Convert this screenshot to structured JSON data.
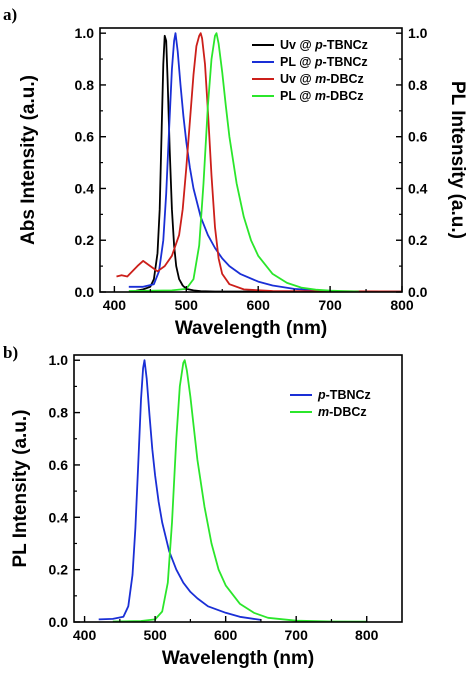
{
  "chart_data": [
    {
      "panel": "a)",
      "type": "line",
      "xlabel": "Wavelength (nm)",
      "ylabel": "Abs Intensity (a.u.)",
      "y2label": "PL Intensity (a.u.)",
      "xlim": [
        380,
        800
      ],
      "ylim": [
        0,
        1.02
      ],
      "xticks": [
        400,
        500,
        600,
        700,
        800
      ],
      "yticks": [
        0.0,
        0.2,
        0.4,
        0.6,
        0.8,
        1.0
      ],
      "ytick_labels": [
        "0.0",
        "0.2",
        "0.4",
        "0.6",
        "0.8",
        "1.0"
      ],
      "legend_position": "top-right",
      "series": [
        {
          "name_parts": [
            "Uv @ ",
            "p",
            "-TBNCz"
          ],
          "color": "#000000",
          "x": [
            430,
            440,
            450,
            455,
            460,
            463,
            466,
            468,
            470,
            472,
            474,
            477,
            480,
            483,
            486,
            490,
            495,
            500,
            510,
            520,
            540,
            580,
            650,
            800
          ],
          "y": [
            0.005,
            0.01,
            0.02,
            0.05,
            0.15,
            0.32,
            0.65,
            0.88,
            0.99,
            0.97,
            0.82,
            0.55,
            0.32,
            0.18,
            0.1,
            0.05,
            0.025,
            0.012,
            0.006,
            0.003,
            0.002,
            0.002,
            0.002,
            0.002
          ]
        },
        {
          "name_parts": [
            "PL @ ",
            "p",
            "-TBNCz"
          ],
          "color": "#1a2fd6",
          "x": [
            420,
            440,
            455,
            462,
            468,
            472,
            476,
            480,
            483,
            485,
            488,
            492,
            496,
            500,
            505,
            510,
            520,
            530,
            540,
            550,
            560,
            575,
            600,
            620,
            650,
            680,
            700
          ],
          "y": [
            0.02,
            0.02,
            0.03,
            0.08,
            0.2,
            0.38,
            0.62,
            0.86,
            0.97,
            1.0,
            0.93,
            0.8,
            0.68,
            0.58,
            0.48,
            0.4,
            0.29,
            0.22,
            0.17,
            0.13,
            0.1,
            0.07,
            0.04,
            0.025,
            0.012,
            0.006,
            0.004
          ]
        },
        {
          "name_parts": [
            "Uv @ ",
            "m",
            "-DBCz"
          ],
          "color": "#cc1f1a",
          "x": [
            403,
            410,
            418,
            425,
            432,
            440,
            450,
            460,
            470,
            480,
            490,
            495,
            500,
            505,
            510,
            514,
            518,
            520,
            522,
            526,
            530,
            535,
            540,
            545,
            550,
            560,
            580,
            620,
            800
          ],
          "y": [
            0.06,
            0.065,
            0.06,
            0.08,
            0.1,
            0.12,
            0.1,
            0.08,
            0.1,
            0.14,
            0.22,
            0.32,
            0.48,
            0.66,
            0.84,
            0.95,
            0.99,
            1.0,
            0.98,
            0.88,
            0.7,
            0.45,
            0.25,
            0.13,
            0.07,
            0.03,
            0.01,
            0.004,
            0.002
          ]
        },
        {
          "name_parts": [
            "PL @ ",
            "m",
            "-DBCz"
          ],
          "color": "#2be62b",
          "x": [
            420,
            480,
            500,
            510,
            518,
            524,
            530,
            535,
            540,
            542,
            545,
            550,
            555,
            560,
            570,
            580,
            590,
            600,
            620,
            640,
            660,
            680,
            700,
            720,
            740
          ],
          "y": [
            0.004,
            0.006,
            0.012,
            0.05,
            0.18,
            0.42,
            0.72,
            0.9,
            0.99,
            1.0,
            0.96,
            0.85,
            0.72,
            0.6,
            0.42,
            0.29,
            0.2,
            0.14,
            0.07,
            0.035,
            0.017,
            0.009,
            0.005,
            0.003,
            0.002
          ]
        }
      ]
    },
    {
      "panel": "b)",
      "type": "line",
      "xlabel": "Wavelength (nm)",
      "ylabel": "PL Intensity (a.u.)",
      "xlim": [
        385,
        850
      ],
      "ylim": [
        0,
        1.02
      ],
      "xticks": [
        400,
        500,
        600,
        700,
        800
      ],
      "yticks": [
        0.0,
        0.2,
        0.4,
        0.6,
        0.8,
        1.0
      ],
      "ytick_labels": [
        "0.0",
        "0.2",
        "0.4",
        "0.6",
        "0.8",
        "1.0"
      ],
      "legend_position": "top-right",
      "series": [
        {
          "name_parts": [
            "",
            "p",
            "-TBNCz"
          ],
          "color": "#1a2fd6",
          "x": [
            420,
            440,
            455,
            462,
            468,
            472,
            476,
            480,
            483,
            485,
            488,
            492,
            496,
            500,
            505,
            510,
            520,
            530,
            540,
            550,
            560,
            575,
            600,
            620,
            650
          ],
          "y": [
            0.01,
            0.012,
            0.02,
            0.06,
            0.18,
            0.36,
            0.6,
            0.85,
            0.97,
            1.0,
            0.93,
            0.79,
            0.66,
            0.56,
            0.46,
            0.38,
            0.27,
            0.2,
            0.15,
            0.115,
            0.09,
            0.06,
            0.035,
            0.02,
            0.008
          ]
        },
        {
          "name_parts": [
            "",
            "m",
            "-DBCz"
          ],
          "color": "#2be62b",
          "x": [
            440,
            480,
            500,
            510,
            518,
            524,
            530,
            535,
            540,
            542,
            545,
            550,
            555,
            560,
            570,
            580,
            590,
            600,
            620,
            640,
            660,
            700,
            750,
            800
          ],
          "y": [
            0.002,
            0.004,
            0.01,
            0.04,
            0.15,
            0.38,
            0.7,
            0.9,
            0.99,
            1.0,
            0.96,
            0.86,
            0.74,
            0.62,
            0.44,
            0.3,
            0.2,
            0.14,
            0.07,
            0.035,
            0.016,
            0.005,
            0.002,
            0.001
          ]
        }
      ]
    }
  ]
}
